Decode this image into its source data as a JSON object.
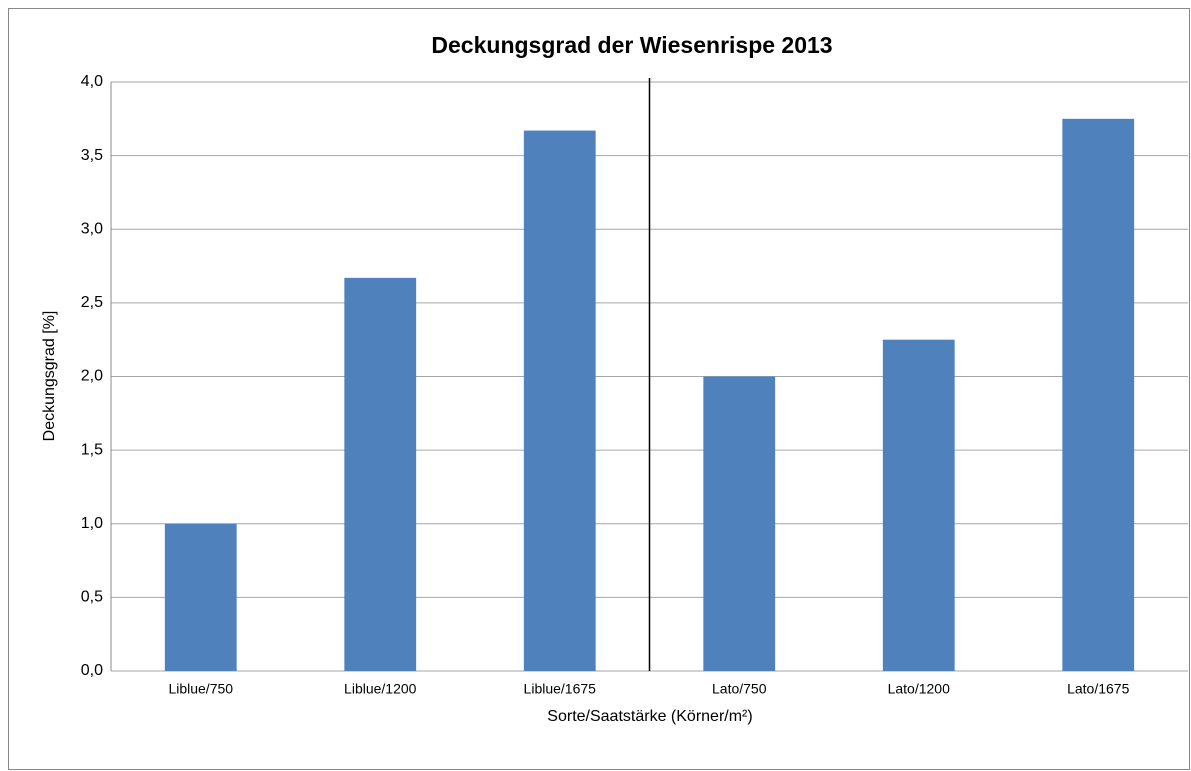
{
  "chart_data": {
    "type": "bar",
    "title": "Deckungsgrad der Wiesenrispe 2013",
    "x_label": "Sorte/Saatstärke (Körner/m²)",
    "y_label": "Deckungsgrad [%]",
    "categories": [
      "Liblue/750",
      "Liblue/1200",
      "Liblue/1675",
      "Lato/750",
      "Lato/1200",
      "Lato/1675"
    ],
    "values": [
      1.0,
      2.67,
      3.67,
      2.0,
      2.25,
      3.75
    ],
    "color": "#4f81bd",
    "ylim": [
      0,
      4
    ],
    "yticks": [
      {
        "value": 0,
        "label": "0,0"
      },
      {
        "value": 0.5,
        "label": "0,5"
      },
      {
        "value": 1,
        "label": "1,0"
      },
      {
        "value": 1.5,
        "label": "1,5"
      },
      {
        "value": 2,
        "label": "2,0"
      },
      {
        "value": 2.5,
        "label": "2,5"
      },
      {
        "value": 3,
        "label": "3,0"
      },
      {
        "value": 3.5,
        "label": "3,5"
      },
      {
        "value": 4,
        "label": "4,0"
      }
    ],
    "grid": true
  }
}
